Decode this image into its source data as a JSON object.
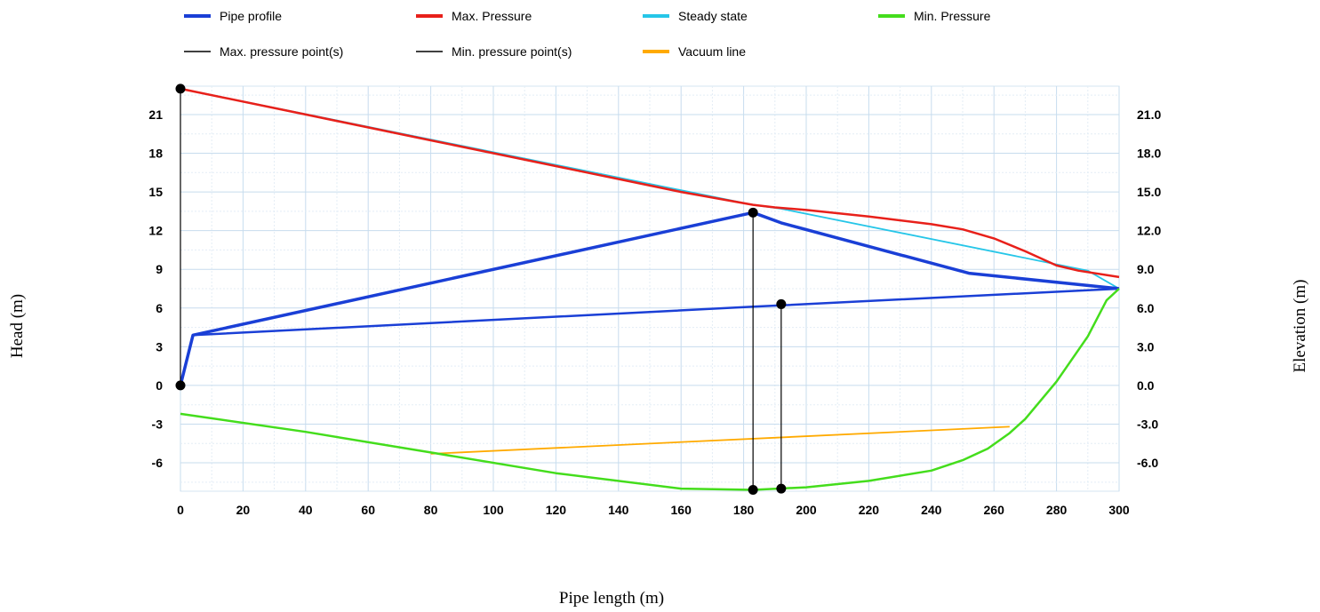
{
  "chart_data": {
    "type": "line",
    "title": "",
    "xlabel": "Pipe length (m)",
    "ylabel_left": "Head (m)",
    "ylabel_right": "Elevation (m)",
    "xlim": [
      0,
      300
    ],
    "ylim": [
      -8.2,
      23.2
    ],
    "x_ticks": [
      0,
      20,
      40,
      60,
      80,
      100,
      120,
      140,
      160,
      180,
      200,
      220,
      240,
      260,
      280,
      300
    ],
    "y_ticks_left": [
      -6,
      -3,
      0,
      3,
      6,
      9,
      12,
      15,
      18,
      21
    ],
    "y_ticks_left_labels": [
      "-6",
      "-3",
      "0",
      "3",
      "6",
      "9",
      "12",
      "15",
      "18",
      "21"
    ],
    "y_ticks_right": [
      -6,
      -3,
      0,
      3,
      6,
      9,
      12,
      15,
      18,
      21
    ],
    "y_ticks_right_labels": [
      "-6.0",
      "-3.0",
      "0.0",
      "3.0",
      "6.0",
      "9.0",
      "12.0",
      "15.0",
      "18.0",
      "21.0"
    ],
    "grid": true,
    "legend_position": "top",
    "series": [
      {
        "name": "Pipe profile",
        "color": "#1a3fd6",
        "x": [
          0,
          4,
          183,
          192,
          252,
          300
        ],
        "y": [
          0,
          3.9,
          13.4,
          12.6,
          8.7,
          7.5
        ]
      },
      {
        "name": "Pipe profile",
        "color": "#1a3fd6",
        "x": [
          0,
          4,
          183,
          300
        ],
        "y": [
          0,
          3.9,
          6.1,
          7.5
        ]
      },
      {
        "name": "Max. Pressure",
        "color": "#e8201a",
        "x": [
          0,
          40,
          80,
          120,
          160,
          183,
          190,
          200,
          220,
          240,
          250,
          260,
          270,
          280,
          287,
          300
        ],
        "y": [
          23,
          21,
          19,
          17,
          15,
          14,
          13.8,
          13.6,
          13.1,
          12.5,
          12.1,
          11.4,
          10.4,
          9.3,
          8.9,
          8.4
        ]
      },
      {
        "name": "Steady state",
        "color": "#26c6e8",
        "x": [
          0,
          183,
          192,
          290,
          300
        ],
        "y": [
          23,
          14,
          13.7,
          8.9,
          7.5
        ]
      },
      {
        "name": "Min. Pressure",
        "color": "#44dd1c",
        "x": [
          0,
          40,
          80,
          120,
          160,
          183,
          200,
          220,
          240,
          250,
          258,
          265,
          270,
          280,
          290,
          296,
          300
        ],
        "y": [
          -2.2,
          -3.6,
          -5.2,
          -6.8,
          -8.0,
          -8.1,
          -7.9,
          -7.4,
          -6.6,
          -5.8,
          -4.9,
          -3.7,
          -2.6,
          0.3,
          3.8,
          6.6,
          7.5
        ]
      },
      {
        "name": "Max. pressure point(s)",
        "color": "#000000",
        "x": [
          0,
          0,
          183,
          183
        ],
        "y": [
          23,
          0,
          13.4,
          -8.1
        ]
      },
      {
        "name": "Min. pressure point(s)",
        "color": "#000000",
        "x": [
          192,
          192
        ],
        "y": [
          6.3,
          -8.0
        ]
      },
      {
        "name": "Vacuum line",
        "color": "#ffaa00",
        "x": [
          80,
          265
        ],
        "y": [
          -5.3,
          -3.2
        ]
      }
    ],
    "markers": [
      {
        "x": 0,
        "y": 23
      },
      {
        "x": 0,
        "y": 0
      },
      {
        "x": 183,
        "y": 13.4
      },
      {
        "x": 183,
        "y": -8.1
      },
      {
        "x": 192,
        "y": 6.3
      },
      {
        "x": 192,
        "y": -8.0
      }
    ],
    "legend": [
      {
        "name": "Pipe profile",
        "color": "#1a3fd6"
      },
      {
        "name": "Max. Pressure",
        "color": "#e8201a"
      },
      {
        "name": "Steady state",
        "color": "#26c6e8"
      },
      {
        "name": "Min. Pressure",
        "color": "#44dd1c"
      },
      {
        "name": "Max. pressure point(s)",
        "color": "#000000"
      },
      {
        "name": "Min. pressure point(s)",
        "color": "#000000"
      },
      {
        "name": "Vacuum line",
        "color": "#ffaa00"
      }
    ]
  }
}
